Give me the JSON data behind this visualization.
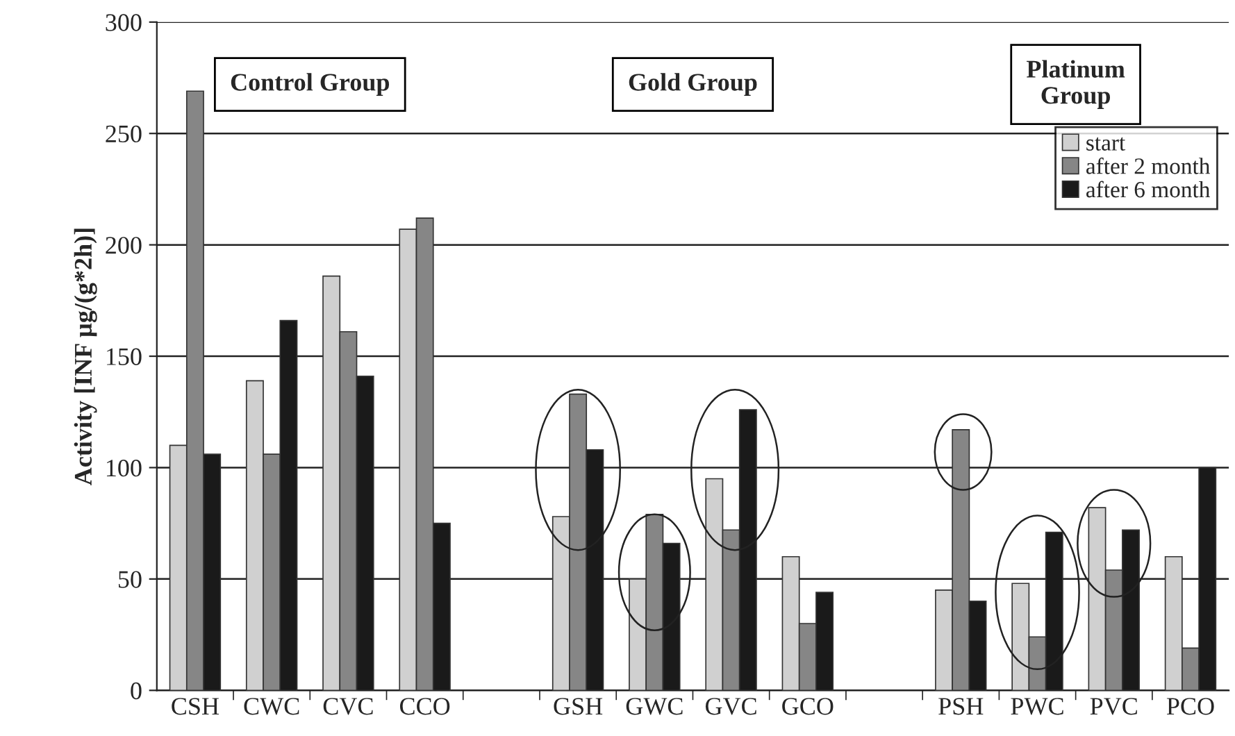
{
  "chart_data": {
    "type": "bar",
    "ylabel": "Activity [INF µg/(g*2h)]",
    "categories": [
      "CSH",
      "CWC",
      "CVC",
      "CCO",
      null,
      "GSH",
      "GWC",
      "GVC",
      "GCO",
      null,
      "PSH",
      "PWC",
      "PVC",
      "PCO"
    ],
    "series": [
      {
        "name": "start",
        "color": "#d0d0d0",
        "values": [
          110,
          139,
          186,
          207,
          null,
          78,
          50,
          95,
          60,
          null,
          45,
          48,
          82,
          60
        ]
      },
      {
        "name": "after 2 month",
        "color": "#868686",
        "values": [
          269,
          106,
          161,
          212,
          null,
          133,
          79,
          72,
          30,
          null,
          117,
          24,
          54,
          19
        ]
      },
      {
        "name": "after 6 month",
        "color": "#1a1a1a",
        "values": [
          106,
          166,
          141,
          75,
          null,
          108,
          66,
          126,
          44,
          null,
          40,
          71,
          72,
          100
        ]
      }
    ],
    "annotations": [
      "Control Group",
      "Gold Group",
      "Platinum\nGroup"
    ],
    "ylim": [
      0,
      300
    ],
    "yticks": [
      0,
      50,
      100,
      150,
      200,
      250,
      300
    ],
    "grid": "y",
    "legend": "top right"
  }
}
